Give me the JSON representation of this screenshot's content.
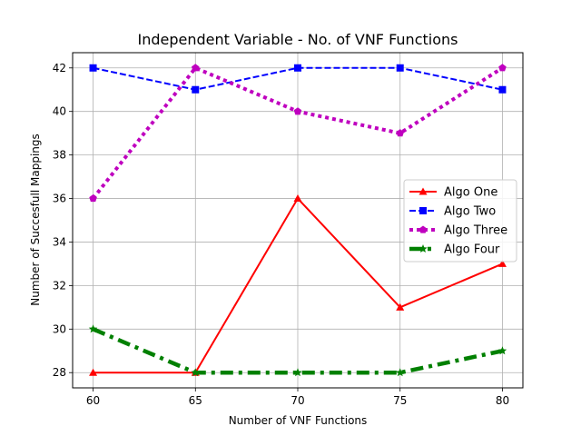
{
  "chart_data": {
    "type": "line",
    "title": "Independent Variable - No. of VNF Functions",
    "xlabel": "Number of VNF Functions",
    "ylabel": "Number of Succesfull Mappings",
    "x": [
      60,
      65,
      70,
      75,
      80
    ],
    "xlim": [
      59,
      81
    ],
    "ylim": [
      27.3,
      42.7
    ],
    "xticks": [
      60,
      65,
      70,
      75,
      80
    ],
    "yticks": [
      28,
      30,
      32,
      34,
      36,
      38,
      40,
      42
    ],
    "grid": true,
    "legend_position": "center-right",
    "series": [
      {
        "name": "Algo One",
        "values": [
          28,
          28,
          36,
          31,
          33
        ],
        "color": "#ff0000",
        "line_style": "solid",
        "marker": "triangle"
      },
      {
        "name": "Algo Two",
        "values": [
          42,
          41,
          42,
          42,
          41
        ],
        "color": "#0000ff",
        "line_style": "dashed",
        "marker": "square"
      },
      {
        "name": "Algo Three",
        "values": [
          36,
          42,
          40,
          39,
          42
        ],
        "color": "#bf00bf",
        "line_style": "dotted",
        "marker": "pentagon"
      },
      {
        "name": "Algo Four",
        "values": [
          30,
          28,
          28,
          28,
          29
        ],
        "color": "#008000",
        "line_style": "dashdot",
        "marker": "star"
      }
    ]
  }
}
